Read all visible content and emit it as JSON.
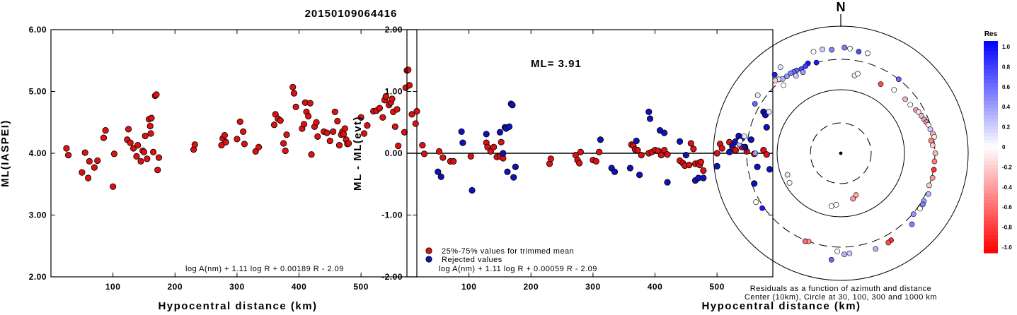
{
  "event_title": "20150109064416",
  "colors": {
    "accepted": "#dd1111",
    "rejected": "#1111bb"
  },
  "chart_data": [
    {
      "type": "scatter",
      "xlabel": "Hypocentral distance (km)",
      "ylabel": "ML(IASPEI)",
      "xlim": [
        0,
        590
      ],
      "ylim": [
        2.0,
        6.0
      ],
      "xticks": [
        "100",
        "200",
        "300",
        "400",
        "500"
      ],
      "yticks": [
        "2.00",
        "3.00",
        "4.00",
        "5.00",
        "6.00"
      ],
      "formula": "log A(nm) + 1.11 log R + 0.00189 R - 2.09",
      "points": [
        [
          25,
          4.08
        ],
        [
          28,
          3.97
        ],
        [
          50,
          3.69
        ],
        [
          55,
          4.01
        ],
        [
          60,
          3.6
        ],
        [
          62,
          3.87
        ],
        [
          70,
          3.77
        ],
        [
          75,
          3.88
        ],
        [
          85,
          4.25
        ],
        [
          88,
          4.37
        ],
        [
          100,
          3.46
        ],
        [
          102,
          3.99
        ],
        [
          123,
          4.22
        ],
        [
          125,
          4.39
        ],
        [
          128,
          4.17
        ],
        [
          133,
          4.08
        ],
        [
          138,
          3.95
        ],
        [
          140,
          4.13
        ],
        [
          145,
          3.87
        ],
        [
          148,
          4.04
        ],
        [
          150,
          4.02
        ],
        [
          152,
          4.28
        ],
        [
          155,
          3.91
        ],
        [
          158,
          4.55
        ],
        [
          160,
          4.44
        ],
        [
          161,
          4.32
        ],
        [
          162,
          4.57
        ],
        [
          165,
          4.02
        ],
        [
          168,
          4.93
        ],
        [
          170,
          4.95
        ],
        [
          172,
          3.73
        ],
        [
          174,
          3.93
        ],
        [
          230,
          4.06
        ],
        [
          232,
          4.14
        ],
        [
          275,
          4.13
        ],
        [
          277,
          4.24
        ],
        [
          280,
          4.29
        ],
        [
          282,
          4.18
        ],
        [
          300,
          4.23
        ],
        [
          305,
          4.51
        ],
        [
          310,
          4.35
        ],
        [
          312,
          4.15
        ],
        [
          330,
          4.03
        ],
        [
          335,
          4.1
        ],
        [
          360,
          4.46
        ],
        [
          362,
          4.63
        ],
        [
          366,
          4.56
        ],
        [
          370,
          4.53
        ],
        [
          375,
          4.16
        ],
        [
          378,
          4.04
        ],
        [
          380,
          4.3
        ],
        [
          390,
          5.07
        ],
        [
          392,
          4.97
        ],
        [
          395,
          4.75
        ],
        [
          405,
          4.4
        ],
        [
          408,
          4.47
        ],
        [
          410,
          4.82
        ],
        [
          412,
          4.67
        ],
        [
          415,
          4.6
        ],
        [
          418,
          4.81
        ],
        [
          420,
          3.98
        ],
        [
          425,
          4.43
        ],
        [
          428,
          4.5
        ],
        [
          430,
          4.27
        ],
        [
          440,
          4.35
        ],
        [
          445,
          4.33
        ],
        [
          450,
          4.2
        ],
        [
          455,
          4.35
        ],
        [
          458,
          4.67
        ],
        [
          462,
          4.52
        ],
        [
          465,
          4.13
        ],
        [
          468,
          4.3
        ],
        [
          470,
          4.35
        ],
        [
          472,
          4.31
        ],
        [
          474,
          4.4
        ],
        [
          476,
          4.22
        ],
        [
          478,
          4.15
        ],
        [
          480,
          4.16
        ],
        [
          500,
          4.58
        ],
        [
          505,
          4.32
        ],
        [
          510,
          4.45
        ],
        [
          520,
          4.68
        ],
        [
          525,
          4.69
        ],
        [
          530,
          4.73
        ],
        [
          535,
          4.58
        ],
        [
          538,
          4.86
        ],
        [
          540,
          4.92
        ],
        [
          545,
          4.78
        ],
        [
          548,
          4.82
        ],
        [
          550,
          4.88
        ],
        [
          552,
          4.67
        ],
        [
          555,
          4.43
        ],
        [
          558,
          4.71
        ],
        [
          560,
          4.12
        ],
        [
          570,
          4.34
        ],
        [
          572,
          5.06
        ],
        [
          574,
          5.34
        ],
        [
          576,
          5.35
        ],
        [
          578,
          5.1
        ],
        [
          582,
          4.63
        ],
        [
          588,
          4.48
        ],
        [
          590,
          4.68
        ]
      ]
    },
    {
      "type": "scatter",
      "xlabel": "Hypocentral distance (km)",
      "ylabel": "ML - ML(evt)",
      "xlim": [
        0,
        590
      ],
      "ylim": [
        -2.0,
        2.0
      ],
      "xticks": [
        "100",
        "200",
        "300",
        "400",
        "500"
      ],
      "yticks": [
        "-2.00",
        "-1.00",
        "0.00",
        "1.00",
        "2.00"
      ],
      "annotation": "ML= 3.91",
      "legend": [
        "25%-75% values for trimmed mean",
        "Rejected values"
      ],
      "formula": "log A(nm) + 1.11 log R + 0.00059 R - 2.09",
      "accepted": [
        [
          25,
          0.13
        ],
        [
          28,
          -0.01
        ],
        [
          52,
          0.03
        ],
        [
          58,
          -0.07
        ],
        [
          70,
          -0.13
        ],
        [
          75,
          -0.13
        ],
        [
          103,
          -0.05
        ],
        [
          128,
          0.17
        ],
        [
          130,
          0.1
        ],
        [
          135,
          0.03
        ],
        [
          140,
          0.1
        ],
        [
          145,
          -0.06
        ],
        [
          150,
          -0.05
        ],
        [
          152,
          0.18
        ],
        [
          155,
          -0.08
        ],
        [
          230,
          -0.17
        ],
        [
          232,
          -0.09
        ],
        [
          272,
          -0.03
        ],
        [
          275,
          -0.11
        ],
        [
          278,
          -0.16
        ],
        [
          280,
          0.02
        ],
        [
          300,
          -0.11
        ],
        [
          305,
          -0.13
        ],
        [
          310,
          0.02
        ],
        [
          362,
          0.14
        ],
        [
          365,
          0.12
        ],
        [
          368,
          0.06
        ],
        [
          372,
          0.05
        ],
        [
          378,
          -0.03
        ],
        [
          390,
          0.0
        ],
        [
          395,
          0.02
        ],
        [
          400,
          0.05
        ],
        [
          405,
          0.04
        ],
        [
          410,
          -0.03
        ],
        [
          415,
          0.05
        ],
        [
          420,
          -0.02
        ],
        [
          440,
          -0.12
        ],
        [
          445,
          -0.16
        ],
        [
          448,
          -0.2
        ],
        [
          455,
          -0.19
        ],
        [
          458,
          0.16
        ],
        [
          462,
          0.07
        ],
        [
          465,
          -0.17
        ],
        [
          470,
          -0.16
        ],
        [
          472,
          -0.19
        ],
        [
          474,
          -0.14
        ],
        [
          478,
          -0.28
        ],
        [
          500,
          0.0
        ],
        [
          505,
          0.15
        ],
        [
          508,
          0.08
        ],
        [
          520,
          0.18
        ],
        [
          525,
          0.1
        ],
        [
          530,
          0.05
        ],
        [
          540,
          0.1
        ],
        [
          548,
          0.03
        ],
        [
          560,
          -0.01
        ],
        [
          575,
          0.05
        ],
        [
          580,
          -0.02
        ]
      ],
      "rejected": [
        [
          50,
          -0.3
        ],
        [
          55,
          -0.38
        ],
        [
          88,
          0.35
        ],
        [
          90,
          0.17
        ],
        [
          105,
          -0.6
        ],
        [
          128,
          0.31
        ],
        [
          150,
          0.34
        ],
        [
          155,
          0.0
        ],
        [
          158,
          0.42
        ],
        [
          160,
          0.4
        ],
        [
          162,
          -0.3
        ],
        [
          165,
          0.43
        ],
        [
          168,
          0.8
        ],
        [
          170,
          0.78
        ],
        [
          172,
          -0.39
        ],
        [
          175,
          -0.22
        ],
        [
          312,
          0.22
        ],
        [
          330,
          -0.24
        ],
        [
          335,
          -0.3
        ],
        [
          360,
          -0.24
        ],
        [
          370,
          0.2
        ],
        [
          375,
          -0.35
        ],
        [
          390,
          0.67
        ],
        [
          392,
          0.56
        ],
        [
          408,
          0.37
        ],
        [
          415,
          0.33
        ],
        [
          420,
          -0.47
        ],
        [
          440,
          0.19
        ],
        [
          450,
          -0.03
        ],
        [
          465,
          -0.44
        ],
        [
          470,
          -0.4
        ],
        [
          478,
          -0.4
        ],
        [
          500,
          -0.21
        ],
        [
          520,
          0.02
        ],
        [
          525,
          0.13
        ],
        [
          530,
          0.19
        ],
        [
          535,
          0.28
        ],
        [
          540,
          0.24
        ],
        [
          545,
          0.1
        ],
        [
          555,
          0.22
        ],
        [
          560,
          -0.49
        ],
        [
          565,
          -0.22
        ],
        [
          575,
          0.67
        ],
        [
          578,
          0.62
        ],
        [
          580,
          0.42
        ],
        [
          585,
          -0.26
        ]
      ]
    },
    {
      "type": "scatter",
      "title": "N",
      "caption_line1": "Residuals as a function of azimuth and distance",
      "caption_line2": "Center (10km), Circle at 30, 100, 300 and 1000 km",
      "ring_distances_km": [
        30,
        100,
        300,
        1000
      ],
      "ring_style": [
        "dashed",
        "solid",
        "dashed",
        "solid"
      ],
      "points_az_dist_res": [
        [
          10,
          175,
          -0.1
        ],
        [
          12,
          190,
          0.0
        ],
        [
          160,
          50,
          -0.35
        ],
        [
          165,
          55,
          -0.4
        ],
        [
          185,
          65,
          0.0
        ],
        [
          190,
          70,
          0.0
        ],
        [
          248,
          80,
          0.1
        ],
        [
          240,
          85,
          0.0
        ],
        [
          345,
          300,
          0.9
        ],
        [
          340,
          320,
          0.9
        ],
        [
          338,
          300,
          0.75
        ],
        [
          335,
          290,
          0.7
        ],
        [
          332,
          300,
          0.6
        ],
        [
          330,
          300,
          0.6
        ],
        [
          328,
          305,
          0.5
        ],
        [
          325,
          300,
          0.4
        ],
        [
          322,
          305,
          0.3
        ],
        [
          320,
          330,
          0.1
        ],
        [
          318,
          345,
          -0.2
        ],
        [
          335,
          255,
          0.4
        ],
        [
          330,
          255,
          0.2
        ],
        [
          320,
          250,
          0.0
        ],
        [
          30,
          180,
          -0.7
        ],
        [
          40,
          200,
          0.0
        ],
        [
          50,
          210,
          -0.3
        ],
        [
          55,
          215,
          0.0
        ],
        [
          60,
          230,
          -0.4
        ],
        [
          62,
          240,
          0.1
        ],
        [
          65,
          250,
          -0.3
        ],
        [
          68,
          260,
          0.3
        ],
        [
          70,
          270,
          -0.5
        ],
        [
          72,
          280,
          -0.1
        ],
        [
          75,
          285,
          0.2
        ],
        [
          78,
          300,
          -0.3
        ],
        [
          80,
          310,
          -0.1
        ],
        [
          82,
          270,
          -0.5
        ],
        [
          85,
          280,
          -0.2
        ],
        [
          90,
          305,
          -0.3
        ],
        [
          95,
          300,
          -0.5
        ],
        [
          100,
          305,
          -0.8
        ],
        [
          105,
          310,
          -0.4
        ],
        [
          110,
          300,
          -0.2
        ],
        [
          115,
          330,
          0.3
        ],
        [
          120,
          320,
          0.4
        ],
        [
          122,
          330,
          0.5
        ],
        [
          125,
          330,
          0.0
        ],
        [
          130,
          310,
          0.4
        ],
        [
          135,
          380,
          0.5
        ],
        [
          150,
          380,
          -0.8
        ],
        [
          152,
          390,
          -0.7
        ],
        [
          160,
          400,
          0.3
        ],
        [
          175,
          380,
          0.2
        ],
        [
          178,
          390,
          0.3
        ],
        [
          182,
          350,
          0.0
        ],
        [
          185,
          480,
          0.6
        ],
        [
          200,
          300,
          -0.4
        ],
        [
          202,
          310,
          -0.6
        ],
        [
          235,
          320,
          0.9
        ],
        [
          240,
          345,
          0.0
        ],
        [
          275,
          400,
          0.3
        ],
        [
          277,
          390,
          0.0
        ],
        [
          300,
          360,
          0.6
        ],
        [
          305,
          390,
          0.1
        ],
        [
          300,
          200,
          0.1
        ],
        [
          320,
          410,
          0.9
        ],
        [
          325,
          450,
          0.1
        ],
        [
          345,
          450,
          0.0
        ],
        [
          350,
          455,
          0.2
        ],
        [
          355,
          430,
          0.5
        ],
        [
          2,
          460,
          0.5
        ],
        [
          5,
          450,
          0.0
        ],
        [
          10,
          420,
          0.7
        ],
        [
          15,
          425,
          0.0
        ],
        [
          38,
          300,
          0.6
        ],
        [
          280,
          345,
          0.1
        ],
        [
          270,
          220,
          0.4
        ]
      ]
    },
    {
      "type": "heatmap",
      "title": "Res",
      "color_scale": [
        "#0000ff",
        "#ffffff",
        "#ff0000"
      ],
      "ticks": [
        "1.0",
        "0.8",
        "0.6",
        "0.4",
        "0.2",
        "0",
        "-0.2",
        "-0.4",
        "-0.6",
        "-0.8",
        "-1.0"
      ]
    }
  ]
}
